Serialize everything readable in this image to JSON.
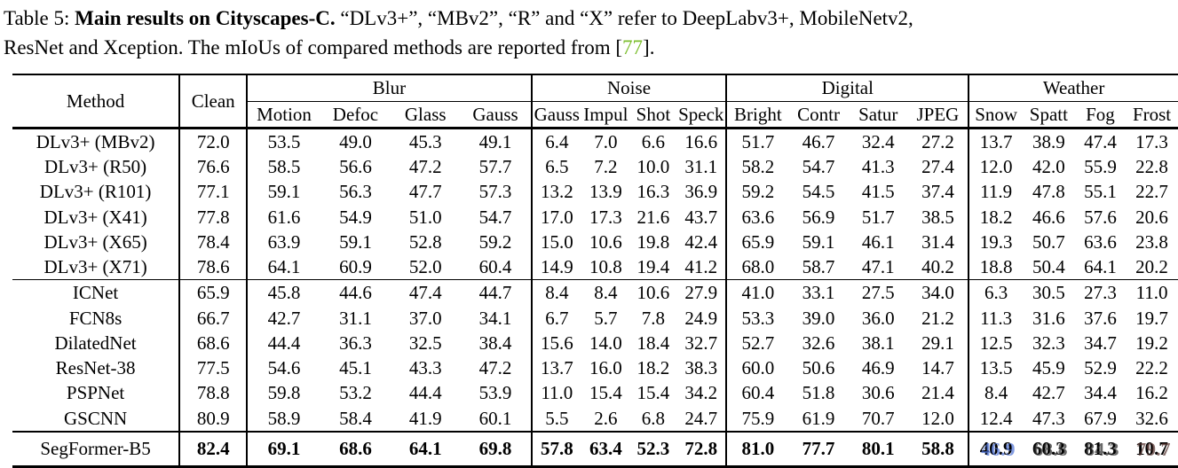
{
  "colors": {
    "background": "#ffffff",
    "text": "#000000",
    "citation_green": "#7cbe2e",
    "rule": "#000000"
  },
  "caption": {
    "label": "Table 5: ",
    "title_bold": "Main results on Cityscapes-C.",
    "line1_rest": " “DLv3+”, “MBv2”, “R” and “X” refer to DeepLabv3+, MobileNetv2,",
    "line2_pre": "ResNet and Xception. The mIoUs of compared methods are reported from [",
    "citation": "77",
    "line2_post": "]."
  },
  "table": {
    "header": {
      "method": "Method",
      "clean": "Clean",
      "groups": [
        {
          "label": "Blur",
          "cols": [
            "Motion",
            "Defoc",
            "Glass",
            "Gauss"
          ]
        },
        {
          "label": "Noise",
          "cols": [
            "Gauss",
            "Impul",
            "Shot",
            "Speck"
          ]
        },
        {
          "label": "Digital",
          "cols": [
            "Bright",
            "Contr",
            "Satur",
            "JPEG"
          ]
        },
        {
          "label": "Weather",
          "cols": [
            "Snow",
            "Spatt",
            "Fog",
            "Frost"
          ]
        }
      ]
    },
    "groups": [
      {
        "rows": [
          {
            "method": "DLv3+ (MBv2)",
            "clean": "72.0",
            "values": [
              "53.5",
              "49.0",
              "45.3",
              "49.1",
              "6.4",
              "7.0",
              "6.6",
              "16.6",
              "51.7",
              "46.7",
              "32.4",
              "27.2",
              "13.7",
              "38.9",
              "47.4",
              "17.3"
            ]
          },
          {
            "method": "DLv3+ (R50)",
            "clean": "76.6",
            "values": [
              "58.5",
              "56.6",
              "47.2",
              "57.7",
              "6.5",
              "7.2",
              "10.0",
              "31.1",
              "58.2",
              "54.7",
              "41.3",
              "27.4",
              "12.0",
              "42.0",
              "55.9",
              "22.8"
            ]
          },
          {
            "method": "DLv3+ (R101)",
            "clean": "77.1",
            "values": [
              "59.1",
              "56.3",
              "47.7",
              "57.3",
              "13.2",
              "13.9",
              "16.3",
              "36.9",
              "59.2",
              "54.5",
              "41.5",
              "37.4",
              "11.9",
              "47.8",
              "55.1",
              "22.7"
            ]
          },
          {
            "method": "DLv3+ (X41)",
            "clean": "77.8",
            "values": [
              "61.6",
              "54.9",
              "51.0",
              "54.7",
              "17.0",
              "17.3",
              "21.6",
              "43.7",
              "63.6",
              "56.9",
              "51.7",
              "38.5",
              "18.2",
              "46.6",
              "57.6",
              "20.6"
            ]
          },
          {
            "method": "DLv3+ (X65)",
            "clean": "78.4",
            "values": [
              "63.9",
              "59.1",
              "52.8",
              "59.2",
              "15.0",
              "10.6",
              "19.8",
              "42.4",
              "65.9",
              "59.1",
              "46.1",
              "31.4",
              "19.3",
              "50.7",
              "63.6",
              "23.8"
            ]
          },
          {
            "method": "DLv3+ (X71)",
            "clean": "78.6",
            "values": [
              "64.1",
              "60.9",
              "52.0",
              "60.4",
              "14.9",
              "10.8",
              "19.4",
              "41.2",
              "68.0",
              "58.7",
              "47.1",
              "40.2",
              "18.8",
              "50.4",
              "64.1",
              "20.2"
            ]
          }
        ]
      },
      {
        "rows": [
          {
            "method": "ICNet",
            "clean": "65.9",
            "values": [
              "45.8",
              "44.6",
              "47.4",
              "44.7",
              "8.4",
              "8.4",
              "10.6",
              "27.9",
              "41.0",
              "33.1",
              "27.5",
              "34.0",
              "6.3",
              "30.5",
              "27.3",
              "11.0"
            ]
          },
          {
            "method": "FCN8s",
            "clean": "66.7",
            "values": [
              "42.7",
              "31.1",
              "37.0",
              "34.1",
              "6.7",
              "5.7",
              "7.8",
              "24.9",
              "53.3",
              "39.0",
              "36.0",
              "21.2",
              "11.3",
              "31.6",
              "37.6",
              "19.7"
            ]
          },
          {
            "method": "DilatedNet",
            "clean": "68.6",
            "values": [
              "44.4",
              "36.3",
              "32.5",
              "38.4",
              "15.6",
              "14.0",
              "18.4",
              "32.7",
              "52.7",
              "32.6",
              "38.1",
              "29.1",
              "12.5",
              "32.3",
              "34.7",
              "19.2"
            ]
          },
          {
            "method": "ResNet-38",
            "clean": "77.5",
            "values": [
              "54.6",
              "45.1",
              "43.3",
              "47.2",
              "13.7",
              "16.0",
              "18.2",
              "38.3",
              "60.0",
              "50.6",
              "46.9",
              "14.7",
              "13.5",
              "45.9",
              "52.9",
              "22.2"
            ]
          },
          {
            "method": "PSPNet",
            "clean": "78.8",
            "values": [
              "59.8",
              "53.2",
              "44.4",
              "53.9",
              "11.0",
              "15.4",
              "15.4",
              "34.2",
              "60.4",
              "51.8",
              "30.6",
              "21.4",
              "8.4",
              "42.7",
              "34.4",
              "16.2"
            ]
          },
          {
            "method": "GSCNN",
            "clean": "80.9",
            "values": [
              "58.9",
              "58.4",
              "41.9",
              "60.1",
              "5.5",
              "2.6",
              "6.8",
              "24.7",
              "75.9",
              "61.9",
              "70.7",
              "12.0",
              "12.4",
              "47.3",
              "67.9",
              "32.6"
            ]
          }
        ]
      }
    ],
    "highlight_row": {
      "method": "SegFormer-B5",
      "clean": "82.4",
      "values": [
        "69.1",
        "68.6",
        "64.1",
        "69.8",
        "57.8",
        "63.4",
        "52.3",
        "72.8",
        "81.0",
        "77.7",
        "80.1",
        "58.8"
      ],
      "weather_garbled": [
        {
          "text": "40.9",
          "ghost": "46.9",
          "ghost_color": "#4a6fd4"
        },
        {
          "text": "60.3",
          "ghost": "68.8",
          "ghost_color": "#2a2a2a"
        },
        {
          "text": "81.3",
          "ghost": "84.3",
          "ghost_color": "#2a2a2a"
        },
        {
          "text": "10.7",
          "ghost": "79.7",
          "ghost_color": "#55332e"
        }
      ]
    }
  }
}
